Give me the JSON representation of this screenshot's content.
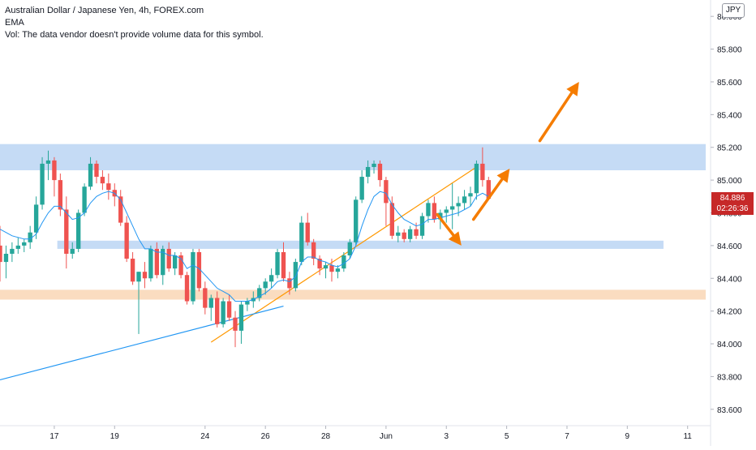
{
  "header": {
    "title": "Australian Dollar / Japanese Yen, 4h, FOREX.com",
    "indicator": "EMA",
    "volume_note": "Vol: The data vendor doesn't provide volume data for this symbol."
  },
  "currency_label": "JPY",
  "current_price": {
    "value": 84.886,
    "label": "84.886",
    "countdown": "02:26:36",
    "color": "#c62828"
  },
  "colors": {
    "up": "#26a69a",
    "down": "#ef5350",
    "ema": "#2196f3",
    "resistance_zone": "#c5dbf5",
    "support_zone": "#fadcc0",
    "trendline_orange": "#ff9800",
    "trendline_blue": "#2196f3",
    "arrow": "#f57c00"
  },
  "chart_data": {
    "type": "candlestick",
    "y_axis": {
      "range": [
        83.5,
        86.1
      ],
      "ticks": [
        "83.600",
        "83.800",
        "84.000",
        "84.200",
        "84.400",
        "84.600",
        "84.800",
        "85.000",
        "85.200",
        "85.400",
        "85.600",
        "85.800",
        "86.000"
      ],
      "tick_values": [
        83.6,
        83.8,
        84.0,
        84.2,
        84.4,
        84.6,
        84.8,
        85.0,
        85.2,
        85.4,
        85.6,
        85.8,
        86.0
      ]
    },
    "x_axis": {
      "bar_range": [
        0,
        117
      ],
      "ticks": [
        {
          "label": "17",
          "bar": 9
        },
        {
          "label": "19",
          "bar": 19
        },
        {
          "label": "24",
          "bar": 34
        },
        {
          "label": "26",
          "bar": 44
        },
        {
          "label": "28",
          "bar": 54
        },
        {
          "label": "Jun",
          "bar": 64
        },
        {
          "label": "3",
          "bar": 74
        },
        {
          "label": "5",
          "bar": 84
        },
        {
          "label": "7",
          "bar": 94
        },
        {
          "label": "9",
          "bar": 104
        },
        {
          "label": "11",
          "bar": 114
        }
      ]
    },
    "candles": [
      [
        84.6,
        84.72,
        84.38,
        84.5
      ],
      [
        84.5,
        84.6,
        84.4,
        84.55
      ],
      [
        84.55,
        84.62,
        84.5,
        84.58
      ],
      [
        84.58,
        84.65,
        84.55,
        84.6
      ],
      [
        84.6,
        84.64,
        84.56,
        84.62
      ],
      [
        84.62,
        84.72,
        84.58,
        84.68
      ],
      [
        84.68,
        84.9,
        84.64,
        84.85
      ],
      [
        84.85,
        85.14,
        84.82,
        85.1
      ],
      [
        85.1,
        85.18,
        85.0,
        85.12
      ],
      [
        85.12,
        85.14,
        84.9,
        85.0
      ],
      [
        85.0,
        85.04,
        84.78,
        84.82
      ],
      [
        84.82,
        84.9,
        84.46,
        84.55
      ],
      [
        84.55,
        84.62,
        84.52,
        84.58
      ],
      [
        84.58,
        84.82,
        84.56,
        84.8
      ],
      [
        84.8,
        84.98,
        84.78,
        84.96
      ],
      [
        84.96,
        85.14,
        84.94,
        85.1
      ],
      [
        85.1,
        85.12,
        84.98,
        85.02
      ],
      [
        85.02,
        85.06,
        84.94,
        84.98
      ],
      [
        84.98,
        85.04,
        84.88,
        84.94
      ],
      [
        84.94,
        84.98,
        84.84,
        84.9
      ],
      [
        84.9,
        84.94,
        84.72,
        84.74
      ],
      [
        84.74,
        84.78,
        84.5,
        84.52
      ],
      [
        84.52,
        84.56,
        84.36,
        84.38
      ],
      [
        84.38,
        84.44,
        84.06,
        84.44
      ],
      [
        84.44,
        84.5,
        84.34,
        84.4
      ],
      [
        84.4,
        84.6,
        84.38,
        84.58
      ],
      [
        84.58,
        84.62,
        84.4,
        84.42
      ],
      [
        84.42,
        84.6,
        84.36,
        84.58
      ],
      [
        84.58,
        84.62,
        84.44,
        84.46
      ],
      [
        84.46,
        84.56,
        84.42,
        84.54
      ],
      [
        84.54,
        84.56,
        84.4,
        84.42
      ],
      [
        84.42,
        84.44,
        84.24,
        84.26
      ],
      [
        84.26,
        84.58,
        84.24,
        84.56
      ],
      [
        84.56,
        84.58,
        84.32,
        84.34
      ],
      [
        84.34,
        84.38,
        84.18,
        84.22
      ],
      [
        84.22,
        84.3,
        84.14,
        84.28
      ],
      [
        84.28,
        84.32,
        84.1,
        84.12
      ],
      [
        84.12,
        84.28,
        84.1,
        84.26
      ],
      [
        84.26,
        84.3,
        84.14,
        84.16
      ],
      [
        84.16,
        84.2,
        83.98,
        84.08
      ],
      [
        84.08,
        84.26,
        84.0,
        84.24
      ],
      [
        84.24,
        84.28,
        84.2,
        84.26
      ],
      [
        84.26,
        84.32,
        84.22,
        84.28
      ],
      [
        84.28,
        84.36,
        84.26,
        84.34
      ],
      [
        84.34,
        84.4,
        84.3,
        84.38
      ],
      [
        84.38,
        84.46,
        84.34,
        84.42
      ],
      [
        84.42,
        84.58,
        84.4,
        84.56
      ],
      [
        84.56,
        84.62,
        84.38,
        84.4
      ],
      [
        84.4,
        84.44,
        84.3,
        84.34
      ],
      [
        84.34,
        84.52,
        84.32,
        84.5
      ],
      [
        84.5,
        84.78,
        84.48,
        84.74
      ],
      [
        84.74,
        84.8,
        84.6,
        84.62
      ],
      [
        84.62,
        84.64,
        84.48,
        84.52
      ],
      [
        84.52,
        84.54,
        84.42,
        84.46
      ],
      [
        84.46,
        84.5,
        84.4,
        84.48
      ],
      [
        84.48,
        84.52,
        84.38,
        84.44
      ],
      [
        84.44,
        84.48,
        84.4,
        84.46
      ],
      [
        84.46,
        84.56,
        84.44,
        84.54
      ],
      [
        84.54,
        84.64,
        84.52,
        84.62
      ],
      [
        84.62,
        84.9,
        84.6,
        84.88
      ],
      [
        84.88,
        85.06,
        84.86,
        85.02
      ],
      [
        85.02,
        85.12,
        84.98,
        85.08
      ],
      [
        85.08,
        85.12,
        85.04,
        85.1
      ],
      [
        85.1,
        85.12,
        84.96,
        85.0
      ],
      [
        85.0,
        85.02,
        84.72,
        84.86
      ],
      [
        84.86,
        84.9,
        84.64,
        84.66
      ],
      [
        84.66,
        84.72,
        84.62,
        84.68
      ],
      [
        84.68,
        84.7,
        84.62,
        84.64
      ],
      [
        84.64,
        84.72,
        84.62,
        84.7
      ],
      [
        84.7,
        84.74,
        84.64,
        84.66
      ],
      [
        84.66,
        84.8,
        84.64,
        84.78
      ],
      [
        84.78,
        84.88,
        84.74,
        84.86
      ],
      [
        84.86,
        84.9,
        84.74,
        84.76
      ],
      [
        84.76,
        84.82,
        84.7,
        84.8
      ],
      [
        84.8,
        84.84,
        84.74,
        84.82
      ],
      [
        84.82,
        84.98,
        84.7,
        84.84
      ],
      [
        84.84,
        84.9,
        84.78,
        84.86
      ],
      [
        84.86,
        84.94,
        84.82,
        84.9
      ],
      [
        84.9,
        84.96,
        84.84,
        84.92
      ],
      [
        84.92,
        85.12,
        84.88,
        85.1
      ],
      [
        85.1,
        85.2,
        84.96,
        85.0
      ],
      [
        85.0,
        85.02,
        84.88,
        84.886
      ]
    ],
    "candle_start_bar": 0,
    "ema": [
      84.7,
      84.68,
      84.66,
      84.65,
      84.64,
      84.64,
      84.67,
      84.74,
      84.8,
      84.84,
      84.84,
      84.8,
      84.76,
      84.77,
      84.8,
      84.86,
      84.9,
      84.92,
      84.93,
      84.92,
      84.88,
      84.8,
      84.72,
      84.64,
      84.58,
      84.58,
      84.56,
      84.56,
      84.54,
      84.54,
      84.52,
      84.46,
      84.48,
      84.46,
      84.42,
      84.38,
      84.34,
      84.32,
      84.3,
      84.26,
      84.26,
      84.26,
      84.27,
      84.29,
      84.31,
      84.34,
      84.38,
      84.39,
      84.38,
      84.41,
      84.5,
      84.53,
      84.53,
      84.51,
      84.5,
      84.48,
      84.47,
      84.49,
      84.52,
      84.6,
      84.72,
      84.82,
      84.9,
      84.93,
      84.92,
      84.85,
      84.8,
      84.76,
      84.74,
      84.72,
      84.73,
      84.76,
      84.76,
      84.77,
      84.78,
      84.79,
      84.8,
      84.82,
      84.84,
      84.9,
      84.92,
      84.9
    ],
    "zones": [
      {
        "name": "resistance",
        "y_top": 85.22,
        "y_bottom": 85.06,
        "x_start_bar": 0,
        "x_end_bar": 117,
        "color": "#c5dbf5"
      },
      {
        "name": "mid-support",
        "y_top": 84.63,
        "y_bottom": 84.58,
        "x_start_bar": 9.5,
        "x_end_bar": 110,
        "color": "#c5dbf5"
      },
      {
        "name": "support",
        "y_top": 84.33,
        "y_bottom": 84.27,
        "x_start_bar": 0,
        "x_end_bar": 117,
        "color": "#fadcc0"
      }
    ],
    "trendlines": [
      {
        "name": "orange-trendline",
        "x1_bar": 35,
        "y1": 84.01,
        "x2_bar": 79,
        "y2": 85.08,
        "color": "#ff9800"
      },
      {
        "name": "blue-trendline",
        "x1_bar": 0,
        "y1": 83.78,
        "x2_bar": 47,
        "y2": 84.23,
        "color": "#2196f3"
      }
    ],
    "arrows": [
      {
        "name": "arrow-down",
        "x1_bar": 72.5,
        "y1": 84.79,
        "x2_bar": 76.5,
        "y2": 84.6
      },
      {
        "name": "arrow-up-small",
        "x1_bar": 78.5,
        "y1": 84.76,
        "x2_bar": 84.5,
        "y2": 85.07
      },
      {
        "name": "arrow-up-large",
        "x1_bar": 89.5,
        "y1": 85.24,
        "x2_bar": 96,
        "y2": 85.6
      }
    ]
  }
}
